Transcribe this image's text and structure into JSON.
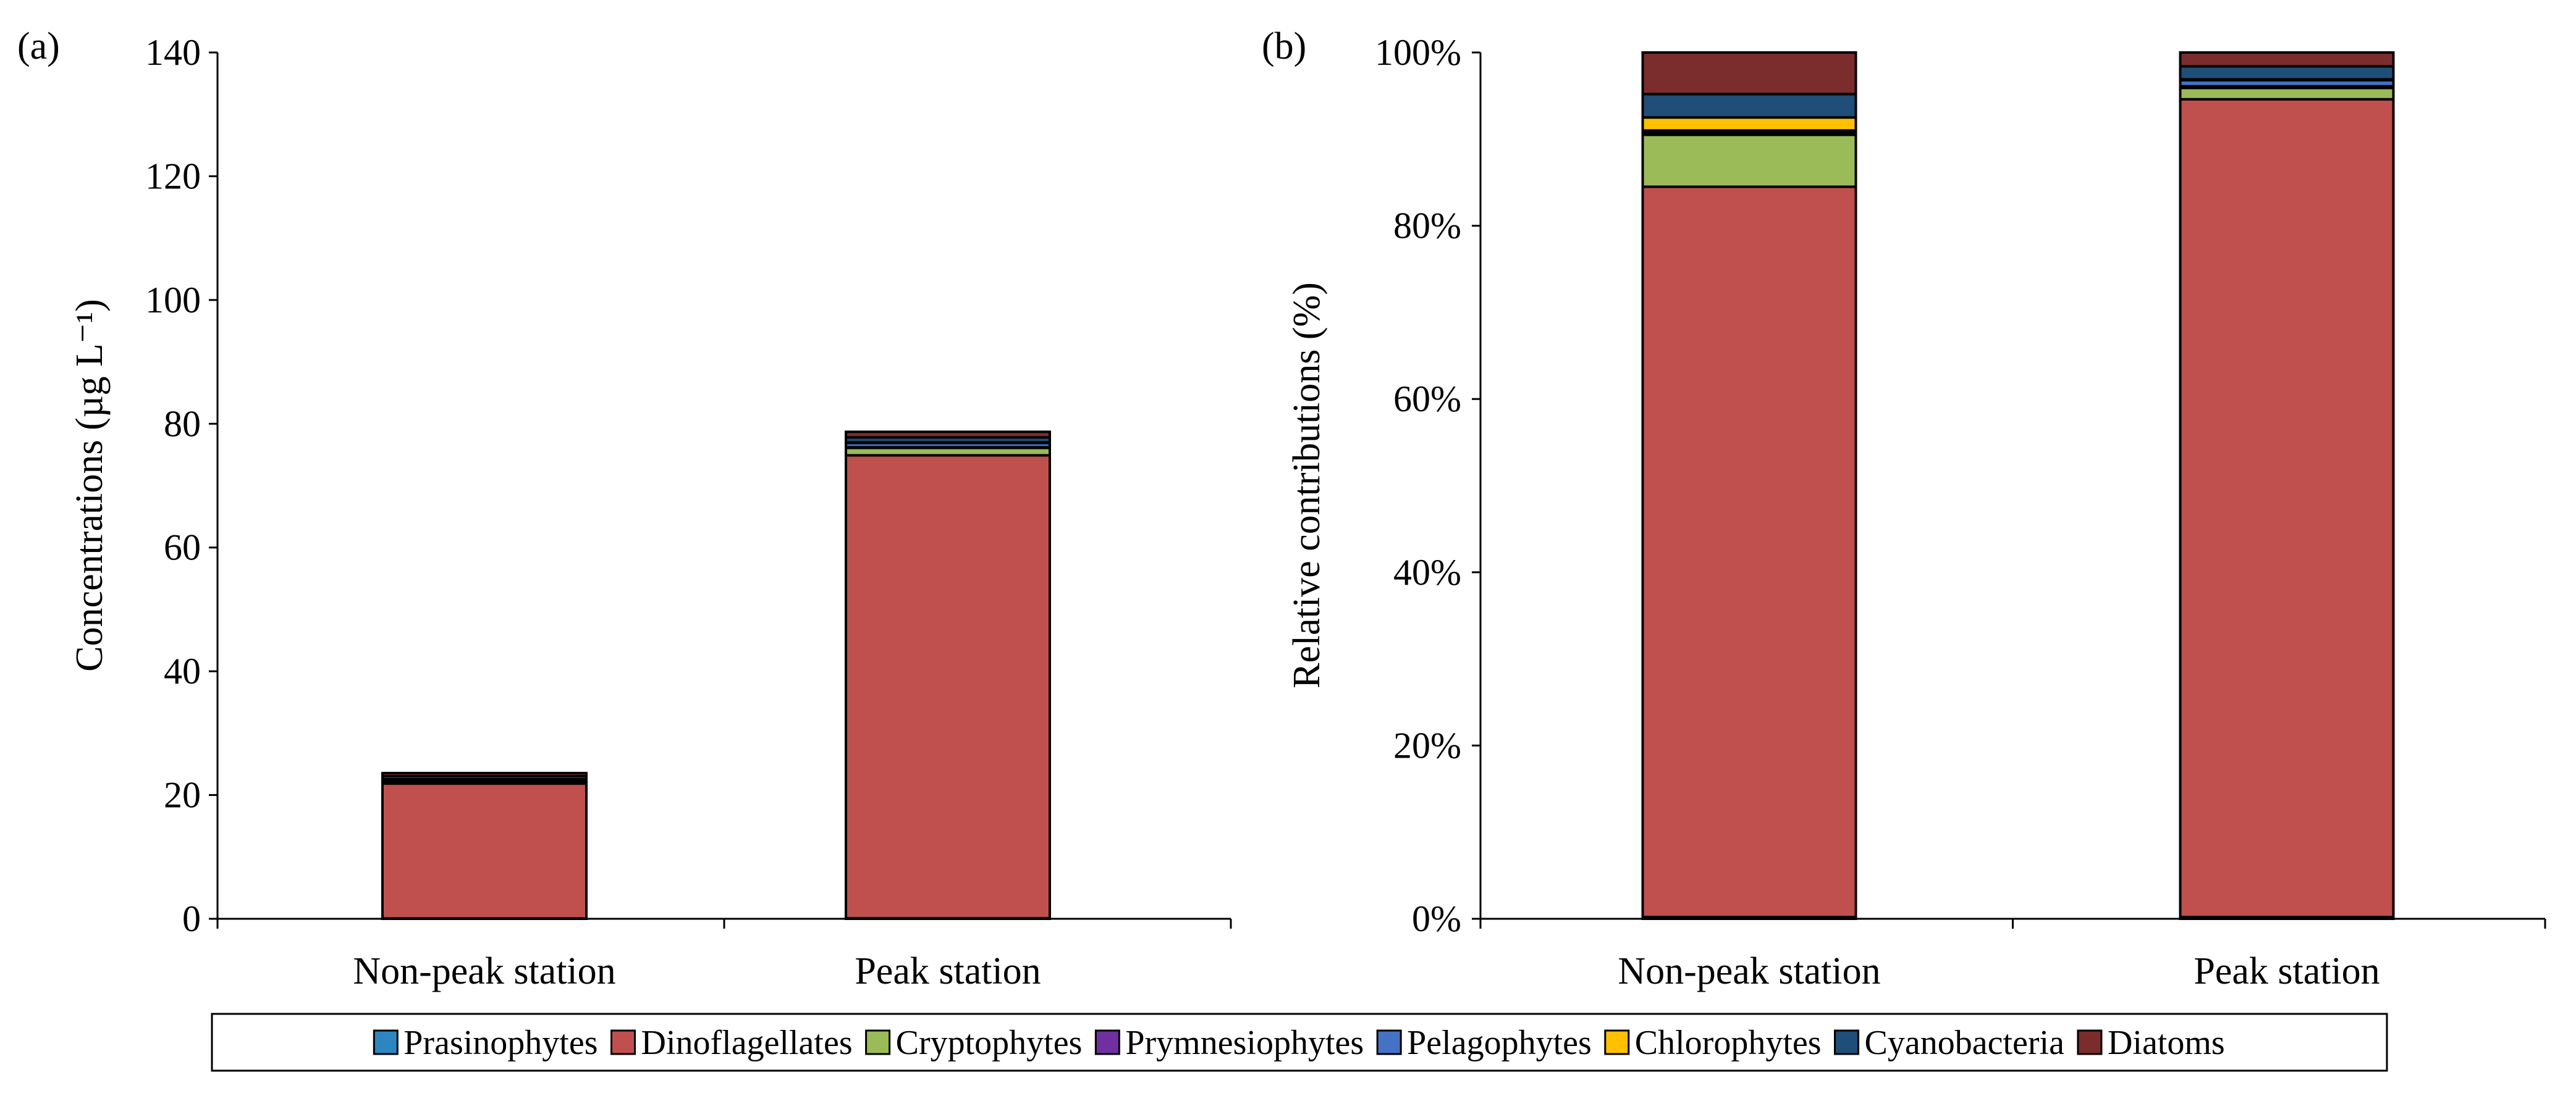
{
  "legend": {
    "entries": [
      {
        "name": "Prasinophytes",
        "color": "#2E86C1"
      },
      {
        "name": "Dinoflagellates",
        "color": "#C0504D"
      },
      {
        "name": "Cryptophytes",
        "color": "#9BBB59"
      },
      {
        "name": "Prymnesiophytes",
        "color": "#7030A0"
      },
      {
        "name": "Pelagophytes",
        "color": "#4472C4"
      },
      {
        "name": "Chlorophytes",
        "color": "#FFC000"
      },
      {
        "name": "Cyanobacteria",
        "color": "#1F4E79"
      },
      {
        "name": "Diatoms",
        "color": "#7B2C2C"
      }
    ]
  },
  "chart_data": [
    {
      "type": "bar",
      "stacked": true,
      "panel_label": "(a)",
      "title": "",
      "ylabel": "Concentrations (µg L⁻¹)",
      "ylim": [
        0,
        140
      ],
      "yticks": [
        "0",
        "20",
        "40",
        "60",
        "80",
        "100",
        "120",
        "140"
      ],
      "categories": [
        "Non-peak station",
        "Peak station"
      ],
      "series": [
        {
          "name": "Prasinophytes",
          "values": [
            0.05,
            0.1
          ]
        },
        {
          "name": "Dinoflagellates",
          "values": [
            21.8,
            74.8
          ]
        },
        {
          "name": "Cryptophytes",
          "values": [
            0.3,
            1.2
          ]
        },
        {
          "name": "Prymnesiophytes",
          "values": [
            0.05,
            0.1
          ]
        },
        {
          "name": "Pelagophytes",
          "values": [
            0.05,
            0.7
          ]
        },
        {
          "name": "Chlorophytes",
          "values": [
            0.3,
            0.1
          ]
        },
        {
          "name": "Cyanobacteria",
          "values": [
            0.5,
            0.8
          ]
        },
        {
          "name": "Diatoms",
          "values": [
            0.5,
            0.9
          ]
        }
      ]
    },
    {
      "type": "bar",
      "stacked": true,
      "panel_label": "(b)",
      "title": "",
      "ylabel": "Relative contributions  (%)",
      "ylim": [
        0,
        100
      ],
      "yticks": [
        "0%",
        "20%",
        "40%",
        "60%",
        "80%",
        "100%"
      ],
      "categories": [
        "Non-peak station",
        "Peak station"
      ],
      "series": [
        {
          "name": "Prasinophytes",
          "values": [
            0.2,
            0.2
          ]
        },
        {
          "name": "Dinoflagellates",
          "values": [
            84.3,
            94.4
          ]
        },
        {
          "name": "Cryptophytes",
          "values": [
            6.0,
            1.3
          ]
        },
        {
          "name": "Prymnesiophytes",
          "values": [
            0.2,
            0.2
          ]
        },
        {
          "name": "Pelagophytes",
          "values": [
            0.3,
            0.7
          ]
        },
        {
          "name": "Chlorophytes",
          "values": [
            1.5,
            0.1
          ]
        },
        {
          "name": "Cyanobacteria",
          "values": [
            2.7,
            1.5
          ]
        },
        {
          "name": "Diatoms",
          "values": [
            4.8,
            1.6
          ]
        }
      ]
    }
  ]
}
